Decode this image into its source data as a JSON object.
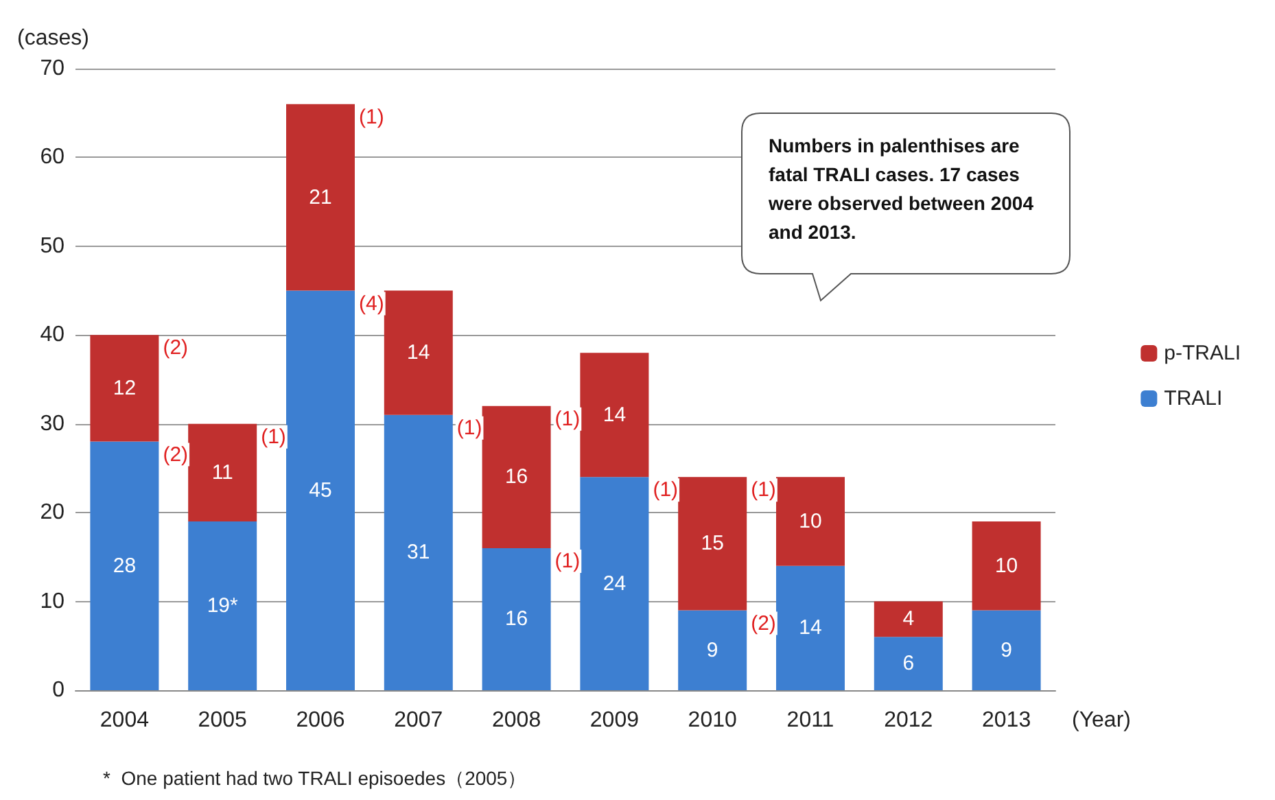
{
  "chart_data": {
    "type": "bar",
    "stacked": true,
    "ylabel": "(cases)",
    "xlabel": "(Year)",
    "categories": [
      "2004",
      "2005",
      "2006",
      "2007",
      "2008",
      "2009",
      "2010",
      "2011",
      "2012",
      "2013"
    ],
    "series": [
      {
        "name": "TRALI",
        "color": "#3d7fd1",
        "values": [
          28,
          19,
          45,
          31,
          16,
          24,
          9,
          14,
          6,
          9
        ],
        "value_labels": [
          "28",
          "19*",
          "45",
          "31",
          "16",
          "24",
          "9",
          "14",
          "6",
          "9"
        ]
      },
      {
        "name": "p-TRALI",
        "color": "#c0302f",
        "values": [
          12,
          11,
          21,
          14,
          16,
          14,
          15,
          10,
          4,
          10
        ],
        "value_labels": [
          "12",
          "11",
          "21",
          "14",
          "16",
          "14",
          "15",
          "10",
          "4",
          "10"
        ]
      }
    ],
    "ylim": [
      0,
      70
    ],
    "yticks": [
      0,
      10,
      20,
      30,
      40,
      50,
      60,
      70
    ],
    "grid": "y",
    "legend": "right",
    "annotations": [
      "Numbers in palenthises are fatal TRALI cases.  17 cases were observed between 2004 and 2013.",
      "*  One patient had two TRALI episoedes（2005）",
      {
        "text": "(2)",
        "x": "2004",
        "y": 40
      },
      {
        "text": "(2)",
        "x": "2004",
        "y": 28
      },
      {
        "text": "(1)",
        "x": "2005",
        "y": 30
      },
      {
        "text": "(1)",
        "x": "2006",
        "y": 66
      },
      {
        "text": "(4)",
        "x": "2006",
        "y": 45
      },
      {
        "text": "(1)",
        "x": "2007",
        "y": 31
      },
      {
        "text": "(1)",
        "x": "2008",
        "y": 32
      },
      {
        "text": "(1)",
        "x": "2008",
        "y": 16
      },
      {
        "text": "(1)",
        "x": "2009",
        "y": 24
      },
      {
        "text": "(1)",
        "x": "2010",
        "y": 24
      },
      {
        "text": "(2)",
        "x": "2010",
        "y": 9
      }
    ]
  }
}
